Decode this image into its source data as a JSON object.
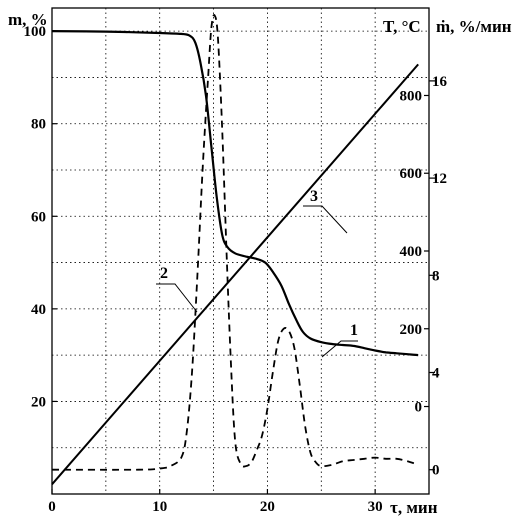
{
  "chart_data": {
    "type": "line",
    "title": "",
    "x_axis": {
      "label": "τ, мин",
      "range": [
        0,
        35
      ],
      "ticks": [
        0,
        10,
        20,
        30
      ],
      "tick_labels": [
        "0",
        "10",
        "20",
        "30"
      ]
    },
    "y_axes": {
      "mass": {
        "label": "m, %",
        "side": "left",
        "range": [
          0,
          105
        ],
        "ticks": [
          20,
          40,
          60,
          80,
          100
        ],
        "tick_labels": [
          "20",
          "40",
          "60",
          "80",
          "100"
        ]
      },
      "temperature": {
        "label": "T, °C",
        "side": "right-inner",
        "range": [
          -225,
          1025
        ],
        "ticks": [
          0,
          200,
          400,
          600,
          800
        ],
        "tick_labels": [
          "0",
          "200",
          "400",
          "600",
          "800"
        ]
      },
      "rate": {
        "label": "ṁ, %/мин",
        "side": "right",
        "range": [
          -1.0,
          19.0
        ],
        "ticks": [
          0,
          4,
          8,
          12,
          16
        ],
        "tick_labels": [
          "0",
          "4",
          "8",
          "12",
          "16"
        ]
      }
    },
    "grid": true,
    "series": [
      {
        "name": "1",
        "axis": "mass",
        "style": "solid",
        "points": [
          [
            0,
            100
          ],
          [
            5,
            99.9
          ],
          [
            10,
            99.6
          ],
          [
            12,
            99.4
          ],
          [
            12.8,
            99
          ],
          [
            13.3,
            97.5
          ],
          [
            13.8,
            93
          ],
          [
            14.3,
            86
          ],
          [
            14.8,
            75
          ],
          [
            15.3,
            64
          ],
          [
            15.8,
            56
          ],
          [
            16.3,
            53.3
          ],
          [
            17,
            52
          ],
          [
            18,
            51.3
          ],
          [
            19,
            50.8
          ],
          [
            19.8,
            50
          ],
          [
            20.5,
            48
          ],
          [
            21.3,
            45
          ],
          [
            22,
            41
          ],
          [
            22.7,
            37.5
          ],
          [
            23.3,
            35
          ],
          [
            24,
            33.6
          ],
          [
            25,
            32.8
          ],
          [
            26,
            32.4
          ],
          [
            27,
            32.2
          ],
          [
            28,
            32
          ],
          [
            29,
            31.5
          ],
          [
            30,
            31
          ],
          [
            31,
            30.6
          ],
          [
            32,
            30.4
          ],
          [
            33,
            30.2
          ],
          [
            34,
            30
          ]
        ]
      },
      {
        "name": "2",
        "axis": "rate",
        "style": "dashed",
        "points": [
          [
            0,
            0
          ],
          [
            8,
            0
          ],
          [
            10,
            0.05
          ],
          [
            11,
            0.15
          ],
          [
            12,
            0.5
          ],
          [
            12.5,
            1.5
          ],
          [
            13,
            4
          ],
          [
            13.5,
            8
          ],
          [
            14,
            12.5
          ],
          [
            14.5,
            16.2
          ],
          [
            14.8,
            18.2
          ],
          [
            15.1,
            18.7
          ],
          [
            15.4,
            17.8
          ],
          [
            15.8,
            14
          ],
          [
            16.2,
            9
          ],
          [
            16.6,
            4.5
          ],
          [
            17,
            1.2
          ],
          [
            17.5,
            0.25
          ],
          [
            18,
            0.15
          ],
          [
            18.5,
            0.3
          ],
          [
            19,
            0.8
          ],
          [
            19.5,
            1.4
          ],
          [
            20,
            2.5
          ],
          [
            20.5,
            4
          ],
          [
            21,
            5.3
          ],
          [
            21.5,
            5.8
          ],
          [
            22,
            5.7
          ],
          [
            22.5,
            5
          ],
          [
            23,
            3.5
          ],
          [
            23.5,
            1.8
          ],
          [
            24,
            0.7
          ],
          [
            24.5,
            0.3
          ],
          [
            25,
            0.15
          ],
          [
            26,
            0.2
          ],
          [
            27,
            0.35
          ],
          [
            28,
            0.4
          ],
          [
            29,
            0.45
          ],
          [
            30,
            0.5
          ],
          [
            31,
            0.45
          ],
          [
            32,
            0.45
          ],
          [
            33,
            0.35
          ],
          [
            34,
            0.2
          ]
        ]
      },
      {
        "name": "3",
        "axis": "temperature",
        "style": "solid",
        "points": [
          [
            0,
            -200
          ],
          [
            34,
            880
          ]
        ]
      }
    ]
  }
}
